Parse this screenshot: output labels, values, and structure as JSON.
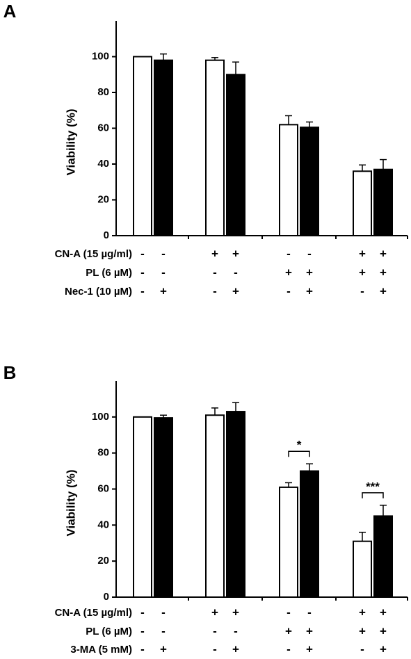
{
  "chart_data": [
    {
      "type": "bar",
      "panel_label": "A",
      "y_label": "Viability (%)",
      "ylim": [
        0,
        120
      ],
      "yticks": [
        0,
        20,
        40,
        60,
        80,
        100
      ],
      "series": [
        {
          "color": "#ffffff",
          "values": [
            100,
            98,
            62,
            36
          ],
          "errors": [
            0,
            1.5,
            5,
            3.5
          ]
        },
        {
          "color": "#000000",
          "values": [
            98,
            90,
            60.5,
            37
          ],
          "errors": [
            3.5,
            7,
            3,
            5.5
          ]
        }
      ],
      "treatments": [
        {
          "label": "CN-A (15 µg/ml)",
          "signs": [
            "-",
            "-",
            "+",
            "+",
            "-",
            "-",
            "+",
            "+"
          ]
        },
        {
          "label": "PL (6 µM)",
          "signs": [
            "-",
            "-",
            "-",
            "-",
            "+",
            "+",
            "+",
            "+"
          ]
        },
        {
          "label": "Nec-1 (10 µM)",
          "signs": [
            "-",
            "+",
            "-",
            "+",
            "-",
            "+",
            "-",
            "+"
          ]
        }
      ]
    },
    {
      "type": "bar",
      "panel_label": "B",
      "y_label": "Viability (%)",
      "ylim": [
        0,
        120
      ],
      "yticks": [
        0,
        20,
        40,
        60,
        80,
        100
      ],
      "series": [
        {
          "color": "#ffffff",
          "values": [
            100,
            101,
            61,
            31
          ],
          "errors": [
            0,
            4,
            2.5,
            5
          ]
        },
        {
          "color": "#000000",
          "values": [
            99.5,
            103,
            70,
            45
          ],
          "errors": [
            1.5,
            5,
            4,
            6
          ]
        }
      ],
      "annotations": [
        "*",
        "***"
      ],
      "treatments": [
        {
          "label": "CN-A (15 µg/ml)",
          "signs": [
            "-",
            "-",
            "+",
            "+",
            "-",
            "-",
            "+",
            "+"
          ]
        },
        {
          "label": "PL (6 µM)",
          "signs": [
            "-",
            "-",
            "-",
            "-",
            "+",
            "+",
            "+",
            "+"
          ]
        },
        {
          "label": "3-MA (5 mM)",
          "signs": [
            "-",
            "+",
            "-",
            "+",
            "-",
            "+",
            "-",
            "+"
          ]
        }
      ]
    }
  ]
}
